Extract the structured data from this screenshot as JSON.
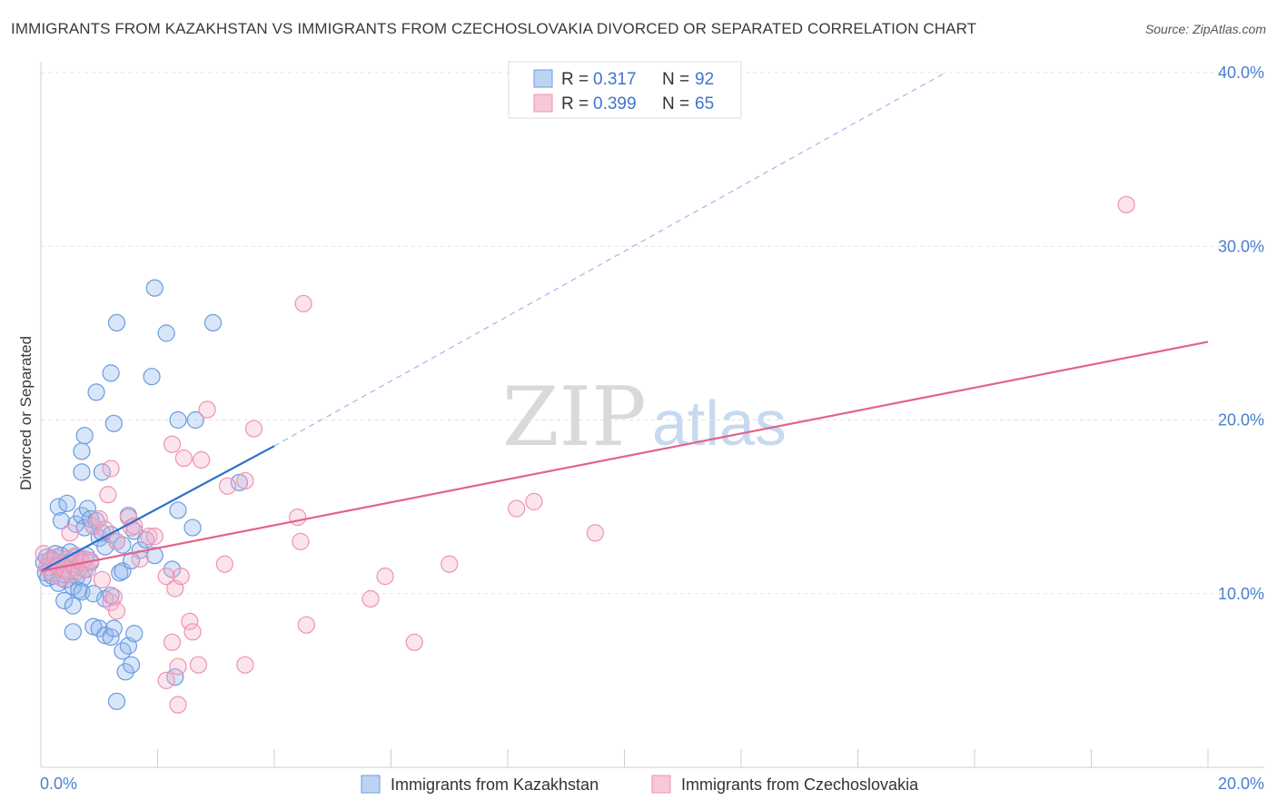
{
  "title": "IMMIGRANTS FROM KAZAKHSTAN VS IMMIGRANTS FROM CZECHOSLOVAKIA DIVORCED OR SEPARATED CORRELATION CHART",
  "source": "Source: ZipAtlas.com",
  "watermark": {
    "zip": "ZIP",
    "atlas": "atlas"
  },
  "legend": {
    "r_label": "R =",
    "n_label": "N =",
    "series": [
      {
        "r": "0.317",
        "n": "92"
      },
      {
        "r": "0.399",
        "n": "65"
      }
    ]
  },
  "bottom_legend": [
    "Immigrants from Kazakhstan",
    "Immigrants from Czechoslovakia"
  ],
  "chart_data": {
    "type": "scatter",
    "title": "IMMIGRANTS FROM KAZAKHSTAN VS IMMIGRANTS FROM CZECHOSLOVAKIA DIVORCED OR SEPARATED CORRELATION CHART",
    "xlabel": "",
    "ylabel": "Divorced or Separated",
    "xlim": [
      0,
      20
    ],
    "ylim": [
      0,
      40
    ],
    "x_tick_labels": [
      "0.0%",
      "20.0%"
    ],
    "y_ticks": [
      10,
      20,
      30,
      40
    ],
    "y_tick_labels": [
      "10.0%",
      "20.0%",
      "30.0%",
      "40.0%"
    ],
    "grid": true,
    "legend_position": "top-center",
    "colors": {
      "kazakhstan": "#6a9be0",
      "czechoslovakia": "#ee92b0",
      "line_kaz": "#2e6fcc",
      "line_cze": "#e0648e"
    },
    "series": [
      {
        "name": "Immigrants from Kazakhstan",
        "r": 0.317,
        "n": 92,
        "trend": {
          "x0": 0.0,
          "y0": 11.3,
          "x1": 4.0,
          "y1": 18.5,
          "dashed_to_x": 15.5,
          "dashed_to_y": 40.0
        },
        "points": [
          [
            0.05,
            11.8
          ],
          [
            0.08,
            11.2
          ],
          [
            0.1,
            12.1
          ],
          [
            0.12,
            10.9
          ],
          [
            0.15,
            11.5
          ],
          [
            0.18,
            12.0
          ],
          [
            0.2,
            11.0
          ],
          [
            0.22,
            11.9
          ],
          [
            0.25,
            12.3
          ],
          [
            0.28,
            11.6
          ],
          [
            0.3,
            10.6
          ],
          [
            0.32,
            11.4
          ],
          [
            0.35,
            12.2
          ],
          [
            0.38,
            11.1
          ],
          [
            0.4,
            11.7
          ],
          [
            0.42,
            10.8
          ],
          [
            0.45,
            12.0
          ],
          [
            0.48,
            11.3
          ],
          [
            0.5,
            12.4
          ],
          [
            0.52,
            11.9
          ],
          [
            0.55,
            10.4
          ],
          [
            0.58,
            11.5
          ],
          [
            0.6,
            12.1
          ],
          [
            0.62,
            11.0
          ],
          [
            0.65,
            10.2
          ],
          [
            0.68,
            12.0
          ],
          [
            0.7,
            11.8
          ],
          [
            0.72,
            10.9
          ],
          [
            0.75,
            11.4
          ],
          [
            0.78,
            12.2
          ],
          [
            0.3,
            15.0
          ],
          [
            0.35,
            14.2
          ],
          [
            0.45,
            15.2
          ],
          [
            0.6,
            14.0
          ],
          [
            0.7,
            14.5
          ],
          [
            0.75,
            13.8
          ],
          [
            0.8,
            14.9
          ],
          [
            0.85,
            14.3
          ],
          [
            0.9,
            13.9
          ],
          [
            0.95,
            14.2
          ],
          [
            1.0,
            13.2
          ],
          [
            1.05,
            13.5
          ],
          [
            1.1,
            12.7
          ],
          [
            1.2,
            13.4
          ],
          [
            1.3,
            13.0
          ],
          [
            1.4,
            12.8
          ],
          [
            1.5,
            14.5
          ],
          [
            1.6,
            13.6
          ],
          [
            1.7,
            12.5
          ],
          [
            1.8,
            13.1
          ],
          [
            0.55,
            7.8
          ],
          [
            0.9,
            8.1
          ],
          [
            1.0,
            8.0
          ],
          [
            1.1,
            7.6
          ],
          [
            1.2,
            7.5
          ],
          [
            1.25,
            8.0
          ],
          [
            1.4,
            6.7
          ],
          [
            1.45,
            5.5
          ],
          [
            1.5,
            7.0
          ],
          [
            1.55,
            5.9
          ],
          [
            1.6,
            7.7
          ],
          [
            1.3,
            3.8
          ],
          [
            0.4,
            9.6
          ],
          [
            0.55,
            9.3
          ],
          [
            0.7,
            10.1
          ],
          [
            0.9,
            10.0
          ],
          [
            1.1,
            9.7
          ],
          [
            1.2,
            9.9
          ],
          [
            1.35,
            11.2
          ],
          [
            1.4,
            11.3
          ],
          [
            0.7,
            17.0
          ],
          [
            0.7,
            18.2
          ],
          [
            0.75,
            19.1
          ],
          [
            1.05,
            17.0
          ],
          [
            1.25,
            19.8
          ],
          [
            1.3,
            25.6
          ],
          [
            1.2,
            22.7
          ],
          [
            0.95,
            21.6
          ],
          [
            1.9,
            22.5
          ],
          [
            1.95,
            27.6
          ],
          [
            2.15,
            25.0
          ],
          [
            2.35,
            20.0
          ],
          [
            2.95,
            25.6
          ],
          [
            2.35,
            14.8
          ],
          [
            2.6,
            13.8
          ],
          [
            2.65,
            20.0
          ],
          [
            3.4,
            16.4
          ],
          [
            2.25,
            11.4
          ],
          [
            1.95,
            12.2
          ],
          [
            2.3,
            5.2
          ],
          [
            0.85,
            11.8
          ],
          [
            1.55,
            11.9
          ]
        ]
      },
      {
        "name": "Immigrants from Czechoslovakia",
        "r": 0.399,
        "n": 65,
        "trend": {
          "x0": 0.0,
          "y0": 11.3,
          "x1": 20.0,
          "y1": 24.5
        },
        "points": [
          [
            0.05,
            12.3
          ],
          [
            0.1,
            11.5
          ],
          [
            0.15,
            11.9
          ],
          [
            0.2,
            11.2
          ],
          [
            0.25,
            12.1
          ],
          [
            0.3,
            11.6
          ],
          [
            0.35,
            10.9
          ],
          [
            0.4,
            11.4
          ],
          [
            0.45,
            12.0
          ],
          [
            0.5,
            11.1
          ],
          [
            0.55,
            11.7
          ],
          [
            0.6,
            12.2
          ],
          [
            0.65,
            11.3
          ],
          [
            0.7,
            11.8
          ],
          [
            0.75,
            12.0
          ],
          [
            0.8,
            11.4
          ],
          [
            0.85,
            11.9
          ],
          [
            0.5,
            13.5
          ],
          [
            0.9,
            13.9
          ],
          [
            1.0,
            14.3
          ],
          [
            1.1,
            13.7
          ],
          [
            1.15,
            15.7
          ],
          [
            1.2,
            17.2
          ],
          [
            1.3,
            13.0
          ],
          [
            1.5,
            14.4
          ],
          [
            1.55,
            13.8
          ],
          [
            1.6,
            13.9
          ],
          [
            1.7,
            12.0
          ],
          [
            1.85,
            13.3
          ],
          [
            1.95,
            13.3
          ],
          [
            1.05,
            10.8
          ],
          [
            1.2,
            9.5
          ],
          [
            1.25,
            9.8
          ],
          [
            1.3,
            9.0
          ],
          [
            2.15,
            11.0
          ],
          [
            2.3,
            10.3
          ],
          [
            2.4,
            11.0
          ],
          [
            2.55,
            8.4
          ],
          [
            2.6,
            7.8
          ],
          [
            2.7,
            5.9
          ],
          [
            2.35,
            5.8
          ],
          [
            2.25,
            7.2
          ],
          [
            2.15,
            5.0
          ],
          [
            2.35,
            3.6
          ],
          [
            2.25,
            18.6
          ],
          [
            2.45,
            17.8
          ],
          [
            2.75,
            17.7
          ],
          [
            2.85,
            20.6
          ],
          [
            3.15,
            11.7
          ],
          [
            3.2,
            16.2
          ],
          [
            3.5,
            16.5
          ],
          [
            3.65,
            19.5
          ],
          [
            3.5,
            5.9
          ],
          [
            4.4,
            14.4
          ],
          [
            4.45,
            13.0
          ],
          [
            4.55,
            8.2
          ],
          [
            4.5,
            26.7
          ],
          [
            5.65,
            9.7
          ],
          [
            5.9,
            11.0
          ],
          [
            6.4,
            7.2
          ],
          [
            7.0,
            11.7
          ],
          [
            8.15,
            14.9
          ],
          [
            8.45,
            15.3
          ],
          [
            9.5,
            13.5
          ],
          [
            18.6,
            32.4
          ]
        ]
      }
    ]
  }
}
